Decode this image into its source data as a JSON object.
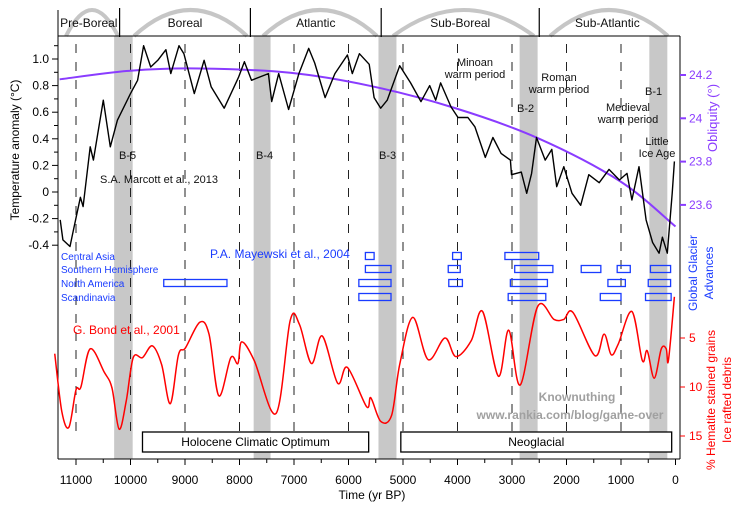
{
  "chart_data": {
    "type": "line",
    "xlabel": "Time (yr BP)",
    "xlim": [
      11400,
      0
    ],
    "xticks": [
      11000,
      10000,
      9000,
      8000,
      7000,
      6000,
      5000,
      4000,
      3000,
      2000,
      1000,
      0
    ],
    "grid": "dashed vertical lines every 1000 yr",
    "periods": [
      {
        "label": "Pre-Boreal",
        "start": 11400,
        "end": 10200
      },
      {
        "label": "Boreal",
        "start": 10200,
        "end": 7800
      },
      {
        "label": "Atlantic",
        "start": 7800,
        "end": 5400
      },
      {
        "label": "Sub-Boreal",
        "start": 5400,
        "end": 2500
      },
      {
        "label": "Sub-Atlantic",
        "start": 2500,
        "end": 0
      }
    ],
    "bond_events": [
      {
        "label": "B-5",
        "start": 10300,
        "end": 9960
      },
      {
        "label": "B-4",
        "start": 7740,
        "end": 7430
      },
      {
        "label": "B-3",
        "start": 5450,
        "end": 5120
      },
      {
        "label": "B-2",
        "start": 2860,
        "end": 2530
      },
      {
        "label": "B-1",
        "start": 480,
        "end": 150
      }
    ],
    "annotations": {
      "minoan": [
        "Minoan",
        "warm period"
      ],
      "roman": [
        "Roman",
        "warm period"
      ],
      "medieval": [
        "Medieval",
        "warm period"
      ],
      "lia": [
        "Little",
        "Ice Age"
      ]
    },
    "intervals": [
      {
        "label": "Holocene Climatic Optimum",
        "start": 9780,
        "end": 5630
      },
      {
        "label": "Neoglacial",
        "start": 5040,
        "end": 70
      }
    ],
    "temperature": {
      "source": "S.A. Marcott et al., 2013",
      "ylabel": "Temperature anomaly (°C)",
      "ylim": [
        -0.45,
        1.12
      ],
      "yticks": [
        "1.0",
        "0.8",
        "0.6",
        "0.4",
        "0.2",
        "0",
        "-0.2",
        "-0.4"
      ],
      "color": "#000000",
      "points": [
        [
          11290,
          -0.21
        ],
        [
          11240,
          -0.36
        ],
        [
          11110,
          -0.41
        ],
        [
          11050,
          -0.29
        ],
        [
          10920,
          -0.04
        ],
        [
          10870,
          -0.11
        ],
        [
          10740,
          0.34
        ],
        [
          10680,
          0.24
        ],
        [
          10500,
          0.69
        ],
        [
          10370,
          0.34
        ],
        [
          10240,
          0.54
        ],
        [
          10000,
          0.74
        ],
        [
          9870,
          0.84
        ],
        [
          9760,
          1.1
        ],
        [
          9630,
          0.94
        ],
        [
          9500,
          0.99
        ],
        [
          9350,
          1.07
        ],
        [
          9260,
          0.89
        ],
        [
          9110,
          1.1
        ],
        [
          9020,
          1.04
        ],
        [
          8830,
          0.74
        ],
        [
          8650,
          0.99
        ],
        [
          8520,
          0.79
        ],
        [
          8280,
          0.63
        ],
        [
          8020,
          0.86
        ],
        [
          7910,
          0.98
        ],
        [
          7780,
          0.84
        ],
        [
          7470,
          0.89
        ],
        [
          7410,
          0.68
        ],
        [
          7280,
          0.89
        ],
        [
          7100,
          0.62
        ],
        [
          6910,
          0.89
        ],
        [
          6730,
          1.08
        ],
        [
          6620,
          0.97
        ],
        [
          6430,
          0.71
        ],
        [
          6250,
          0.89
        ],
        [
          6020,
          1.03
        ],
        [
          5930,
          0.89
        ],
        [
          5800,
          1.04
        ],
        [
          5620,
          0.96
        ],
        [
          5530,
          0.71
        ],
        [
          5410,
          0.63
        ],
        [
          5290,
          0.69
        ],
        [
          5060,
          0.95
        ],
        [
          4860,
          0.82
        ],
        [
          4670,
          0.68
        ],
        [
          4510,
          0.8
        ],
        [
          4400,
          0.69
        ],
        [
          4310,
          0.82
        ],
        [
          4120,
          0.64
        ],
        [
          3990,
          0.56
        ],
        [
          3810,
          0.56
        ],
        [
          3680,
          0.49
        ],
        [
          3490,
          0.26
        ],
        [
          3350,
          0.41
        ],
        [
          3200,
          0.29
        ],
        [
          3030,
          0.24
        ],
        [
          3010,
          0.13
        ],
        [
          2830,
          0.15
        ],
        [
          2730,
          -0.01
        ],
        [
          2640,
          0.14
        ],
        [
          2550,
          0.41
        ],
        [
          2390,
          0.24
        ],
        [
          2270,
          0.32
        ],
        [
          2180,
          0.04
        ],
        [
          2050,
          0.19
        ],
        [
          1900,
          -0.01
        ],
        [
          1740,
          -0.1
        ],
        [
          1590,
          0.13
        ],
        [
          1400,
          0.07
        ],
        [
          1220,
          0.17
        ],
        [
          1030,
          0.09
        ],
        [
          890,
          0.14
        ],
        [
          800,
          -0.06
        ],
        [
          670,
          0.19
        ],
        [
          540,
          -0.21
        ],
        [
          420,
          -0.38
        ],
        [
          300,
          -0.46
        ],
        [
          240,
          -0.34
        ],
        [
          150,
          -0.46
        ],
        [
          60,
          -0.01
        ],
        [
          20,
          0.23
        ]
      ]
    },
    "obliquity": {
      "ylabel": "Obliquity (°)",
      "yticks": [
        "24.2",
        "24",
        "23.8",
        "23.6"
      ],
      "color": "#8a3cff",
      "points": [
        [
          11300,
          24.18
        ],
        [
          10000,
          24.22
        ],
        [
          8730,
          24.23
        ],
        [
          7070,
          24.21
        ],
        [
          5610,
          24.15
        ],
        [
          4080,
          24.05
        ],
        [
          2540,
          23.91
        ],
        [
          1020,
          23.71
        ],
        [
          0,
          23.5
        ]
      ]
    },
    "glacier": {
      "source": "P.A. Mayewski et al., 2004",
      "ylabel": [
        "Global Glacier",
        "Advances"
      ],
      "color": "#1a3cff",
      "rows": [
        {
          "name": "Central Asia",
          "spans": [
            [
              5690,
              5530
            ],
            [
              4090,
              3930
            ],
            [
              3130,
              2510
            ]
          ]
        },
        {
          "name": "Southern Hemisphere",
          "spans": [
            [
              5690,
              5220
            ],
            [
              4170,
              3950
            ],
            [
              2950,
              2250
            ],
            [
              1730,
              1370
            ],
            [
              1070,
              830
            ],
            [
              460,
              90
            ]
          ]
        },
        {
          "name": "North America",
          "spans": [
            [
              9390,
              8230
            ],
            [
              5810,
              5220
            ],
            [
              4160,
              3910
            ],
            [
              3030,
              2350
            ],
            [
              1240,
              920
            ],
            [
              500,
              90
            ]
          ]
        },
        {
          "name": "Scandinavia",
          "spans": [
            [
              5810,
              5220
            ],
            [
              3070,
              2380
            ],
            [
              1380,
              1000
            ],
            [
              550,
              80
            ]
          ]
        }
      ]
    },
    "hematite": {
      "source": "G. Bond et al., 2001",
      "ylabel": [
        "% Hematite stained grains",
        "Ice rafted debris"
      ],
      "yticks": [
        "5",
        "10",
        "15"
      ],
      "inverted": true,
      "color": "#ff0000",
      "points": [
        [
          11390,
          6.6
        ],
        [
          11260,
          12.5
        ],
        [
          11130,
          14.1
        ],
        [
          11000,
          10.3
        ],
        [
          10910,
          10.0
        ],
        [
          10740,
          6.1
        ],
        [
          10480,
          8.5
        ],
        [
          10340,
          10.1
        ],
        [
          10210,
          14.3
        ],
        [
          10080,
          11.5
        ],
        [
          9950,
          7.0
        ],
        [
          9780,
          7.0
        ],
        [
          9600,
          5.8
        ],
        [
          9430,
          7.7
        ],
        [
          9270,
          11.7
        ],
        [
          9120,
          6.7
        ],
        [
          8990,
          6.0
        ],
        [
          8730,
          3.4
        ],
        [
          8560,
          4.6
        ],
        [
          8380,
          10.9
        ],
        [
          8160,
          7.0
        ],
        [
          8030,
          7.6
        ],
        [
          7960,
          5.4
        ],
        [
          7730,
          7.3
        ],
        [
          7330,
          12.7
        ],
        [
          7070,
          3.2
        ],
        [
          6900,
          3.6
        ],
        [
          6680,
          7.6
        ],
        [
          6480,
          4.8
        ],
        [
          6200,
          9.6
        ],
        [
          6020,
          8.0
        ],
        [
          5670,
          12.0
        ],
        [
          5590,
          11.1
        ],
        [
          5410,
          13.5
        ],
        [
          5210,
          12.9
        ],
        [
          5060,
          7.7
        ],
        [
          4820,
          2.9
        ],
        [
          4540,
          7.2
        ],
        [
          4230,
          5.0
        ],
        [
          4030,
          6.9
        ],
        [
          3750,
          5.3
        ],
        [
          3540,
          2.3
        ],
        [
          3250,
          8.9
        ],
        [
          3060,
          4.2
        ],
        [
          2850,
          9.8
        ],
        [
          2530,
          1.8
        ],
        [
          2230,
          3.1
        ],
        [
          2050,
          3.1
        ],
        [
          1880,
          2.4
        ],
        [
          1480,
          6.8
        ],
        [
          1310,
          4.6
        ],
        [
          1180,
          6.7
        ],
        [
          1050,
          5.6
        ],
        [
          800,
          2.3
        ],
        [
          610,
          7.3
        ],
        [
          520,
          6.3
        ],
        [
          390,
          9.1
        ],
        [
          260,
          6.1
        ],
        [
          170,
          6.1
        ],
        [
          130,
          7.3
        ],
        [
          20,
          0.8
        ]
      ]
    },
    "watermark": [
      "Knownuthing",
      "www.rankia.com/blog/game-over"
    ]
  }
}
